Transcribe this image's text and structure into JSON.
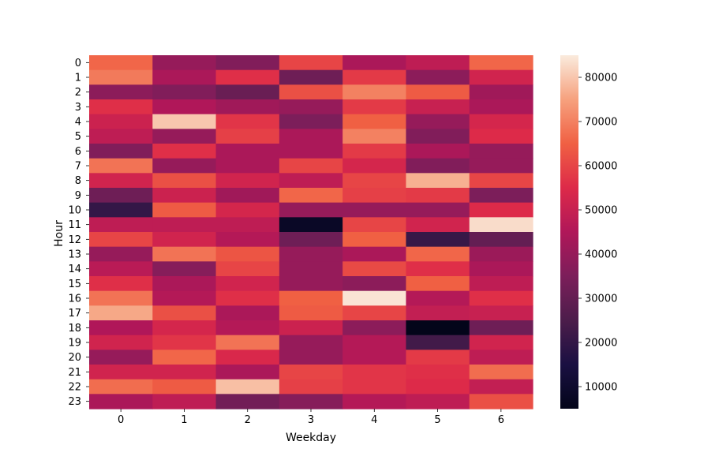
{
  "chart_data": {
    "type": "heatmap",
    "title": "",
    "xlabel": "Weekday",
    "ylabel": "Hour",
    "x_categories": [
      "0",
      "1",
      "2",
      "3",
      "4",
      "5",
      "6"
    ],
    "y_categories": [
      "0",
      "1",
      "2",
      "3",
      "4",
      "5",
      "6",
      "7",
      "8",
      "9",
      "10",
      "11",
      "12",
      "13",
      "14",
      "15",
      "16",
      "17",
      "18",
      "19",
      "20",
      "21",
      "22",
      "23"
    ],
    "colormap": "rocket",
    "colorbar": {
      "vmin": 5000,
      "vmax": 85000,
      "ticks": [
        10000,
        20000,
        30000,
        40000,
        50000,
        60000,
        70000,
        80000
      ],
      "tick_labels": [
        "10000",
        "20000",
        "30000",
        "40000",
        "50000",
        "60000",
        "70000",
        "80000"
      ]
    },
    "grid": false,
    "legend": "colorbar-right",
    "values": [
      [
        66000,
        40000,
        36000,
        60000,
        44000,
        48000,
        66000
      ],
      [
        69000,
        44000,
        56000,
        32000,
        58000,
        38000,
        52000
      ],
      [
        38000,
        36000,
        31000,
        62000,
        70000,
        64000,
        42000
      ],
      [
        56000,
        45000,
        42000,
        40000,
        58000,
        50000,
        44000
      ],
      [
        51000,
        80000,
        57000,
        35000,
        65000,
        40000,
        53000
      ],
      [
        48000,
        40000,
        59000,
        44000,
        70000,
        36000,
        55000
      ],
      [
        36000,
        56000,
        44000,
        44000,
        58000,
        44000,
        40000
      ],
      [
        68000,
        40000,
        44000,
        60000,
        53000,
        36000,
        40000
      ],
      [
        52000,
        62000,
        52000,
        48000,
        60000,
        77000,
        60000
      ],
      [
        32000,
        51000,
        42000,
        66000,
        59000,
        58000,
        35000
      ],
      [
        20000,
        64000,
        53000,
        40000,
        40000,
        40000,
        55000
      ],
      [
        48000,
        48000,
        48000,
        8000,
        60000,
        52000,
        83000
      ],
      [
        60000,
        52000,
        46000,
        32000,
        65000,
        21000,
        30000
      ],
      [
        40000,
        68000,
        63000,
        40000,
        44000,
        66000,
        41000
      ],
      [
        47000,
        37000,
        60000,
        40000,
        61000,
        56000,
        44000
      ],
      [
        56000,
        44000,
        52000,
        40000,
        38000,
        65000,
        48000
      ],
      [
        68000,
        46000,
        56000,
        65000,
        84000,
        46000,
        56000
      ],
      [
        76000,
        62000,
        44000,
        64000,
        60000,
        49000,
        50000
      ],
      [
        45000,
        53000,
        46000,
        51000,
        38000,
        5000,
        32000
      ],
      [
        52000,
        57000,
        68000,
        40000,
        46000,
        23000,
        52000
      ],
      [
        40000,
        66000,
        54000,
        40000,
        46000,
        58000,
        48000
      ],
      [
        52000,
        52000,
        44000,
        60000,
        57000,
        56000,
        67000
      ],
      [
        67000,
        64000,
        79000,
        59000,
        57000,
        55000,
        49000
      ],
      [
        44000,
        48000,
        33000,
        37000,
        46000,
        48000,
        62000
      ]
    ]
  }
}
